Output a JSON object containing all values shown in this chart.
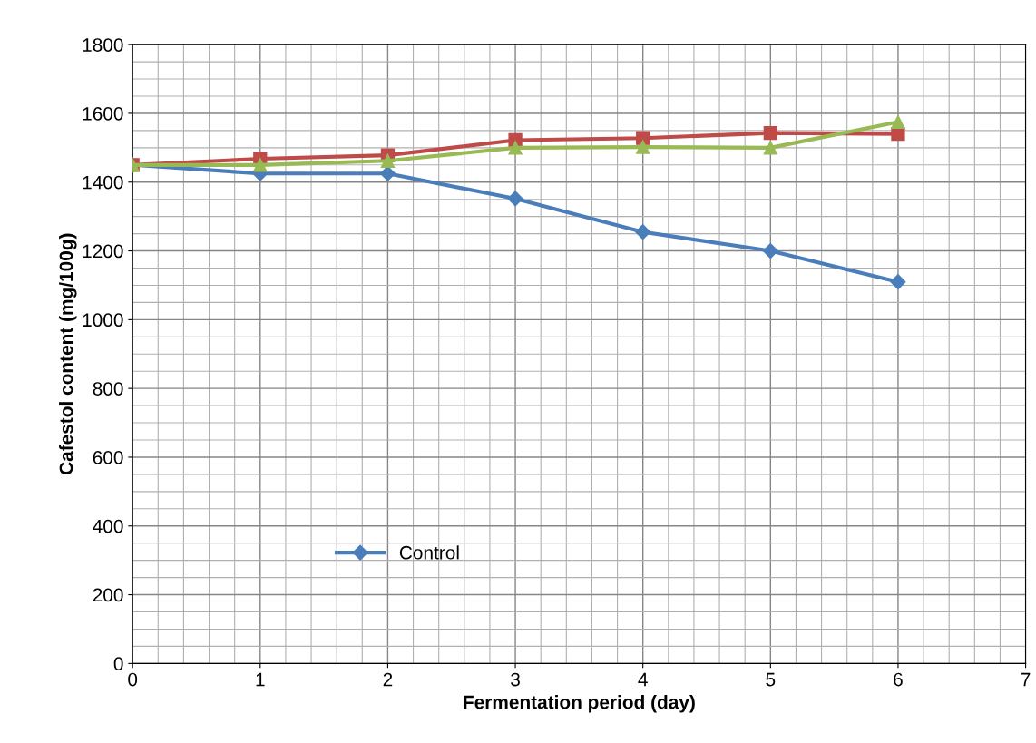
{
  "chart_data": {
    "type": "line",
    "xlabel": "Fermentation period (day)",
    "ylabel": "Cafestol content (mg/100g)",
    "x": [
      0,
      1,
      2,
      3,
      4,
      5,
      6
    ],
    "series": [
      {
        "name": "Control",
        "color": "#4a7ebb",
        "marker": "diamond",
        "values": [
          1450,
          1425,
          1425,
          1352,
          1255,
          1200,
          1110
        ]
      },
      {
        "color": "#be4b48",
        "marker": "square",
        "values": [
          1450,
          1468,
          1478,
          1522,
          1528,
          1543,
          1540
        ]
      },
      {
        "color": "#98b954",
        "marker": "triangle",
        "values": [
          1450,
          1450,
          1462,
          1500,
          1502,
          1500,
          1575
        ]
      }
    ],
    "xlim": [
      0,
      7
    ],
    "xticks": [
      0,
      1,
      2,
      3,
      4,
      5,
      6,
      7
    ],
    "ylim": [
      0,
      1800
    ],
    "yticks": [
      0,
      200,
      400,
      600,
      800,
      1000,
      1200,
      1400,
      1600,
      1800
    ],
    "grid": true,
    "legend": "bottom",
    "line_style": "solid"
  }
}
